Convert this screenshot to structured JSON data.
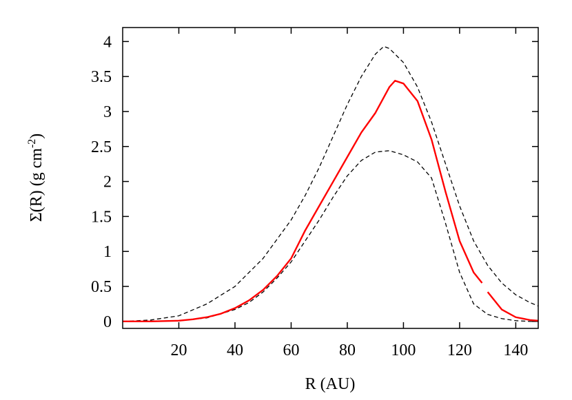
{
  "chart_data": {
    "type": "line",
    "xlabel": "R (AU)",
    "ylabel": [
      "Σ(R) (g cm",
      "-2",
      ")"
    ],
    "xlim": [
      0,
      148
    ],
    "ylim": [
      -0.1,
      4.2
    ],
    "xticks": [
      20,
      40,
      60,
      80,
      100,
      120,
      140
    ],
    "yticks": [
      0,
      0.5,
      1,
      1.5,
      2,
      2.5,
      3,
      3.5,
      4
    ],
    "series": [
      {
        "color": "#000000",
        "line_style": "dashed",
        "x": [
          0,
          10,
          20,
          30,
          40,
          50,
          60,
          65,
          70,
          75,
          80,
          85,
          90,
          93,
          95,
          100,
          105,
          110,
          115,
          120,
          125,
          130,
          135,
          140,
          145,
          148
        ],
        "values": [
          0,
          0.02,
          0.08,
          0.25,
          0.5,
          0.9,
          1.45,
          1.8,
          2.2,
          2.65,
          3.1,
          3.5,
          3.82,
          3.93,
          3.9,
          3.7,
          3.35,
          2.85,
          2.25,
          1.65,
          1.15,
          0.8,
          0.55,
          0.38,
          0.27,
          0.22
        ]
      },
      {
        "color": "#000000",
        "line_style": "dashed",
        "x": [
          0,
          20,
          30,
          40,
          45,
          50,
          55,
          60,
          65,
          70,
          75,
          80,
          85,
          90,
          95,
          100,
          105,
          110,
          115,
          120,
          125,
          130,
          135,
          140,
          145,
          148
        ],
        "values": [
          0,
          0.01,
          0.05,
          0.17,
          0.27,
          0.42,
          0.62,
          0.85,
          1.15,
          1.45,
          1.78,
          2.08,
          2.3,
          2.42,
          2.44,
          2.38,
          2.28,
          2.05,
          1.4,
          0.7,
          0.25,
          0.1,
          0.04,
          0.01,
          0,
          0
        ]
      },
      {
        "color": "#ff0000",
        "line_style": "solid",
        "x": [
          0,
          10,
          20,
          25,
          30,
          35,
          40,
          45,
          50,
          55,
          60,
          65,
          70,
          75,
          80,
          85,
          90,
          95,
          97,
          100,
          105,
          110,
          115,
          120,
          125,
          128,
          129,
          130,
          135,
          140,
          145,
          148
        ],
        "values": [
          0,
          0,
          0.01,
          0.03,
          0.06,
          0.11,
          0.19,
          0.3,
          0.45,
          0.65,
          0.9,
          1.3,
          1.65,
          2.0,
          2.35,
          2.7,
          2.98,
          3.35,
          3.44,
          3.4,
          3.15,
          2.6,
          1.85,
          1.15,
          0.7,
          0.55,
          null,
          0.42,
          0.17,
          0.06,
          0.02,
          0.01
        ]
      }
    ]
  }
}
